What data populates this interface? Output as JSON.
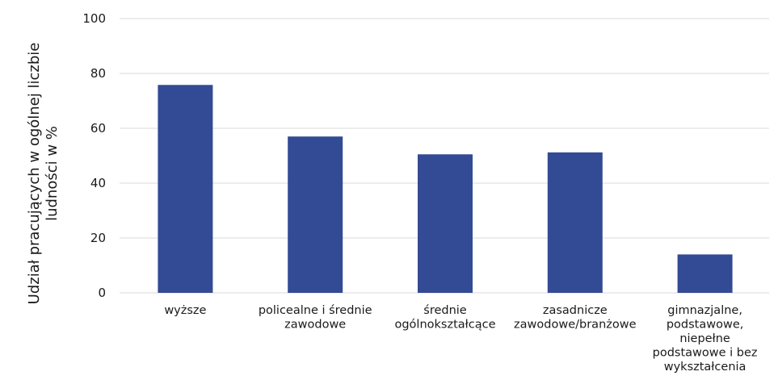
{
  "chart_data": {
    "type": "bar",
    "title": "",
    "xlabel": "",
    "ylabel": "Udział pracujących w ogólnej liczbie ludności w %",
    "ylabel_lines": [
      "Udział pracujących w ogólnej liczbie",
      "ludności w %"
    ],
    "ylim": [
      0,
      100
    ],
    "yticks": [
      0,
      20,
      40,
      60,
      80,
      100
    ],
    "grid": true,
    "legend": "none",
    "bar_color": "#334a94",
    "categories": [
      "wyższe",
      "policealne i średnie zawodowe",
      "średnie ogólnokształcące",
      "zasadnicze zawodowe/branżowe",
      "gimnazjalne, podstawowe, niepełne podstawowe i bez wykształcenia"
    ],
    "category_lines": [
      [
        "wyższe"
      ],
      [
        "policealne i średnie",
        "zawodowe"
      ],
      [
        "średnie",
        "ogólnokształcące"
      ],
      [
        "zasadnicze",
        "zawodowe/branżowe"
      ],
      [
        "gimnazjalne,",
        "podstawowe,",
        "niepełne",
        "podstawowe i bez",
        "wykształcenia"
      ]
    ],
    "values": [
      75.8,
      57.0,
      50.5,
      51.2,
      14.0
    ]
  }
}
